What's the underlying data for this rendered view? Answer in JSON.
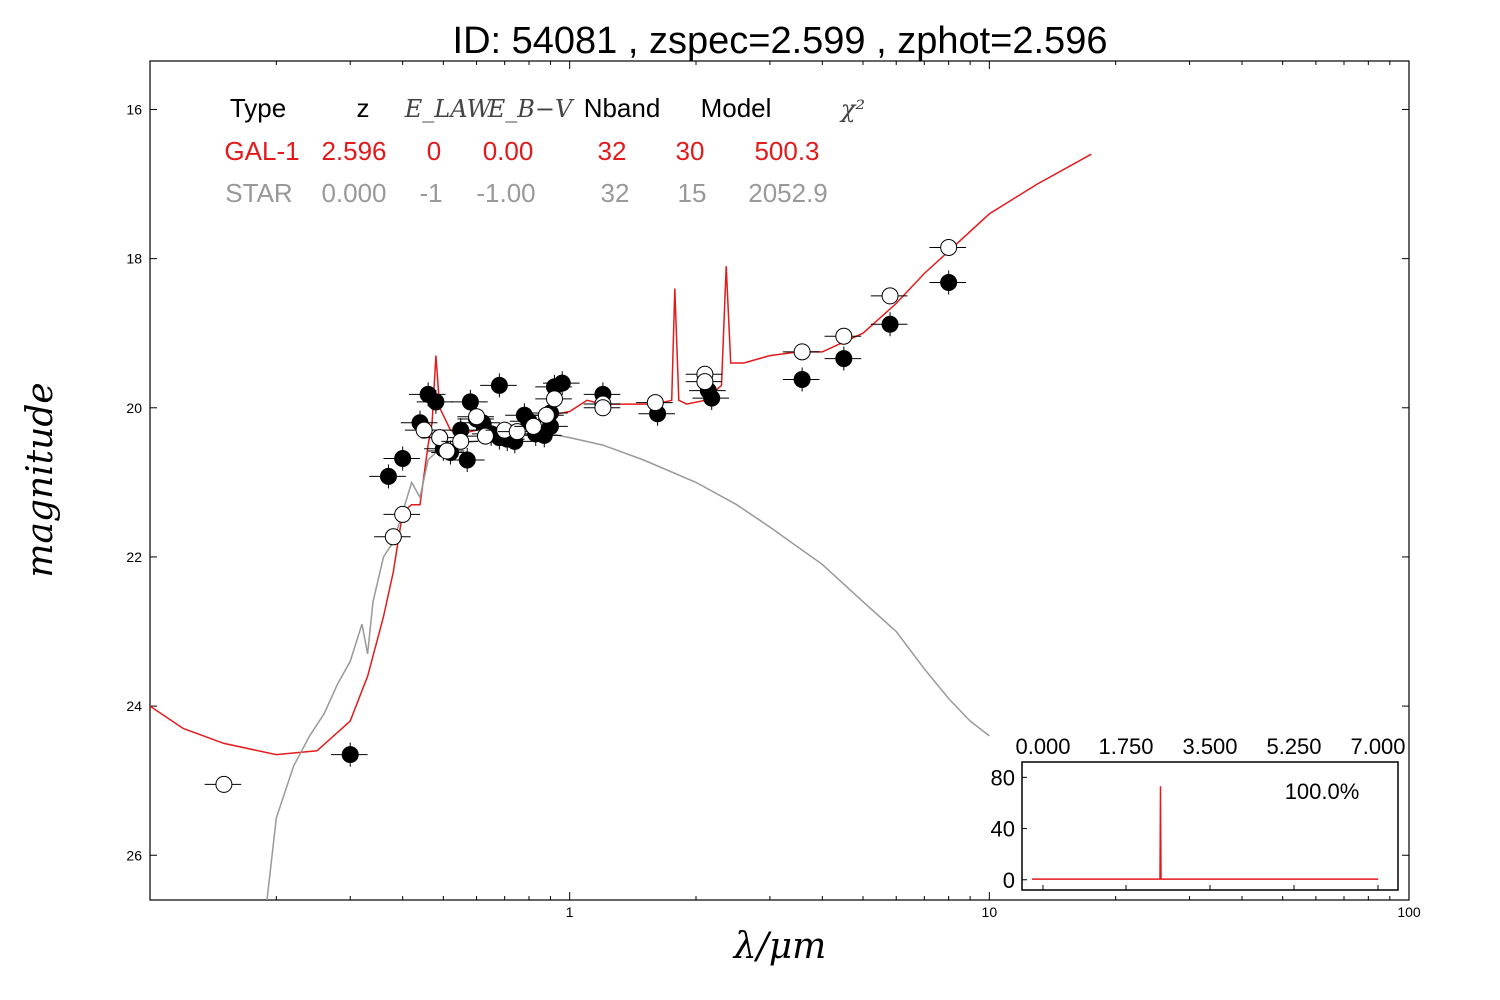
{
  "title": "ID:  54081 , zspec=2.599 , zphot=2.596",
  "colors": {
    "gal": "#e31a1c",
    "star": "#999999",
    "points": "#000000"
  },
  "chart_data": {
    "type": "scatter",
    "title": "ID:  54081 , zspec=2.599 , zphot=2.596",
    "xlabel": "λ/μm",
    "ylabel": "magnitude",
    "xscale": "log",
    "yaxis_inverted": true,
    "xlim": [
      0.1,
      100
    ],
    "ylim": [
      26.6,
      15.35
    ],
    "x_ticks": [
      {
        "v": 1,
        "label": "1"
      },
      {
        "v": 10,
        "label": "10"
      },
      {
        "v": 100,
        "label": "100"
      }
    ],
    "y_ticks": [
      {
        "v": 16,
        "label": "16"
      },
      {
        "v": 18,
        "label": "18"
      },
      {
        "v": 20,
        "label": "20"
      },
      {
        "v": 22,
        "label": "22"
      },
      {
        "v": 24,
        "label": "24"
      },
      {
        "v": 26,
        "label": "26"
      }
    ],
    "fit_table": {
      "header": [
        "Type",
        "z",
        "E_LAW",
        "E_B−V",
        "Nband",
        "Model",
        "χ²"
      ],
      "rows": [
        {
          "name": "GAL-1",
          "values": [
            "GAL-1",
            "2.596",
            "0",
            "0.00",
            "32",
            "30",
            "500.3"
          ]
        },
        {
          "name": "STAR",
          "values": [
            "STAR",
            "0.000",
            "-1",
            "-1.00",
            "32",
            "15",
            "2052.9"
          ]
        }
      ]
    },
    "series": [
      {
        "name": "GAL-1",
        "kind": "line",
        "points": [
          [
            0.1,
            24.0
          ],
          [
            0.12,
            24.3
          ],
          [
            0.15,
            24.5
          ],
          [
            0.2,
            24.65
          ],
          [
            0.25,
            24.6
          ],
          [
            0.3,
            24.2
          ],
          [
            0.33,
            23.6
          ],
          [
            0.36,
            22.8
          ],
          [
            0.38,
            22.2
          ],
          [
            0.4,
            21.4
          ],
          [
            0.42,
            21.3
          ],
          [
            0.44,
            21.3
          ],
          [
            0.46,
            20.5
          ],
          [
            0.47,
            20.2
          ],
          [
            0.48,
            19.3
          ],
          [
            0.49,
            20.0
          ],
          [
            0.52,
            20.3
          ],
          [
            0.55,
            20.35
          ],
          [
            0.6,
            20.3
          ],
          [
            0.7,
            20.25
          ],
          [
            0.8,
            20.2
          ],
          [
            0.9,
            20.1
          ],
          [
            1.0,
            20.05
          ],
          [
            1.1,
            19.9
          ],
          [
            1.2,
            19.95
          ],
          [
            1.4,
            19.95
          ],
          [
            1.6,
            19.95
          ],
          [
            1.75,
            19.9
          ],
          [
            1.78,
            18.4
          ],
          [
            1.82,
            19.9
          ],
          [
            1.9,
            19.95
          ],
          [
            2.1,
            19.9
          ],
          [
            2.3,
            19.7
          ],
          [
            2.36,
            18.1
          ],
          [
            2.42,
            19.4
          ],
          [
            2.6,
            19.4
          ],
          [
            3.0,
            19.3
          ],
          [
            3.5,
            19.25
          ],
          [
            4.0,
            19.25
          ],
          [
            5.0,
            19.0
          ],
          [
            6.0,
            18.6
          ],
          [
            7.0,
            18.2
          ],
          [
            8.0,
            17.9
          ],
          [
            10.0,
            17.4
          ],
          [
            13.0,
            17.0
          ],
          [
            17.5,
            16.6
          ]
        ]
      },
      {
        "name": "STAR",
        "kind": "line",
        "points": [
          [
            0.19,
            26.6
          ],
          [
            0.2,
            25.5
          ],
          [
            0.22,
            24.8
          ],
          [
            0.24,
            24.4
          ],
          [
            0.26,
            24.1
          ],
          [
            0.28,
            23.7
          ],
          [
            0.3,
            23.4
          ],
          [
            0.32,
            22.9
          ],
          [
            0.33,
            23.3
          ],
          [
            0.34,
            22.6
          ],
          [
            0.36,
            22.0
          ],
          [
            0.38,
            21.8
          ],
          [
            0.4,
            21.4
          ],
          [
            0.42,
            21.0
          ],
          [
            0.44,
            21.2
          ],
          [
            0.46,
            20.7
          ],
          [
            0.5,
            20.5
          ],
          [
            0.6,
            20.45
          ],
          [
            0.7,
            20.4
          ],
          [
            0.8,
            20.35
          ],
          [
            0.9,
            20.35
          ],
          [
            1.0,
            20.4
          ],
          [
            1.2,
            20.5
          ],
          [
            1.5,
            20.7
          ],
          [
            2.0,
            21.0
          ],
          [
            2.5,
            21.3
          ],
          [
            3.0,
            21.6
          ],
          [
            4.0,
            22.1
          ],
          [
            5.0,
            22.6
          ],
          [
            6.0,
            23.0
          ],
          [
            7.0,
            23.5
          ],
          [
            8.0,
            23.9
          ],
          [
            9.0,
            24.2
          ],
          [
            10.0,
            24.4
          ]
        ]
      },
      {
        "name": "observed",
        "kind": "points",
        "filled": true,
        "points": [
          [
            0.3,
            24.65
          ],
          [
            0.37,
            20.92
          ],
          [
            0.4,
            20.68
          ],
          [
            0.44,
            20.2
          ],
          [
            0.46,
            19.82
          ],
          [
            0.48,
            19.92
          ],
          [
            0.5,
            20.55
          ],
          [
            0.52,
            20.6
          ],
          [
            0.55,
            20.3
          ],
          [
            0.57,
            20.7
          ],
          [
            0.58,
            19.92
          ],
          [
            0.6,
            20.15
          ],
          [
            0.62,
            20.2
          ],
          [
            0.65,
            20.35
          ],
          [
            0.68,
            20.4
          ],
          [
            0.71,
            20.42
          ],
          [
            0.74,
            20.45
          ],
          [
            0.68,
            19.7
          ],
          [
            0.78,
            20.1
          ],
          [
            0.8,
            20.18
          ],
          [
            0.83,
            20.35
          ],
          [
            0.87,
            20.37
          ],
          [
            0.9,
            20.25
          ],
          [
            0.9,
            20.07
          ],
          [
            0.92,
            19.72
          ],
          [
            0.96,
            19.67
          ],
          [
            1.2,
            19.82
          ],
          [
            1.62,
            20.08
          ],
          [
            2.14,
            19.77
          ],
          [
            2.18,
            19.87
          ],
          [
            3.58,
            19.62
          ],
          [
            4.5,
            19.34
          ],
          [
            5.8,
            18.88
          ],
          [
            8.0,
            18.32
          ]
        ]
      },
      {
        "name": "model",
        "kind": "points",
        "filled": false,
        "points": [
          [
            0.15,
            25.05
          ],
          [
            0.38,
            21.73
          ],
          [
            0.4,
            21.43
          ],
          [
            0.45,
            20.3
          ],
          [
            0.49,
            20.4
          ],
          [
            0.51,
            20.58
          ],
          [
            0.55,
            20.45
          ],
          [
            0.6,
            20.12
          ],
          [
            0.63,
            20.38
          ],
          [
            0.7,
            20.3
          ],
          [
            0.75,
            20.32
          ],
          [
            0.82,
            20.25
          ],
          [
            0.88,
            20.1
          ],
          [
            0.92,
            19.88
          ],
          [
            1.2,
            19.95
          ],
          [
            1.2,
            20.0
          ],
          [
            1.6,
            19.93
          ],
          [
            2.1,
            19.55
          ],
          [
            2.1,
            19.65
          ],
          [
            3.58,
            19.25
          ],
          [
            4.5,
            19.04
          ],
          [
            5.8,
            18.5
          ],
          [
            8.0,
            17.85
          ]
        ]
      }
    ],
    "inset": {
      "type": "line",
      "xlim": [
        -0.2,
        7.4
      ],
      "ylim": [
        -8,
        92
      ],
      "x_ticks": [
        "0.000",
        "1.750",
        "3.500",
        "5.250",
        "7.000"
      ],
      "y_ticks": [
        "0",
        "40",
        "80"
      ],
      "annotation": "100.0%",
      "points": [
        [
          0.0,
          0.5
        ],
        [
          2.59,
          0.5
        ],
        [
          2.6,
          73.0
        ],
        [
          2.61,
          0.5
        ],
        [
          7.0,
          0.5
        ]
      ]
    }
  }
}
